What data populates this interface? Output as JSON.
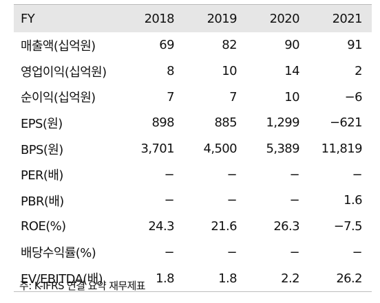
{
  "table": {
    "header": {
      "label": "FY",
      "years": [
        "2018",
        "2019",
        "2020",
        "2021"
      ]
    },
    "rows": [
      {
        "label": "매출액(십억원)",
        "values": [
          "69",
          "82",
          "90",
          "91"
        ]
      },
      {
        "label": "영업이익(십억원)",
        "values": [
          "8",
          "10",
          "14",
          "2"
        ]
      },
      {
        "label": "순이익(십억원)",
        "values": [
          "7",
          "7",
          "10",
          "−6"
        ]
      },
      {
        "label": "EPS(원)",
        "values": [
          "898",
          "885",
          "1,299",
          "−621"
        ]
      },
      {
        "label": "BPS(원)",
        "values": [
          "3,701",
          "4,500",
          "5,389",
          "11,819"
        ]
      },
      {
        "label": "PER(배)",
        "values": [
          "−",
          "−",
          "−",
          "−"
        ]
      },
      {
        "label": "PBR(배)",
        "values": [
          "−",
          "−",
          "−",
          "1.6"
        ]
      },
      {
        "label": "ROE(%)",
        "values": [
          "24.3",
          "21.6",
          "26.3",
          "−7.5"
        ]
      },
      {
        "label": "배당수익률(%)",
        "values": [
          "−",
          "−",
          "−",
          "−"
        ]
      },
      {
        "label": "EV/EBITDA(배)",
        "values": [
          "1.8",
          "1.8",
          "2.2",
          "26.2"
        ]
      }
    ]
  },
  "footnote": "주: K-IFRS 연결 요약 재무제표"
}
